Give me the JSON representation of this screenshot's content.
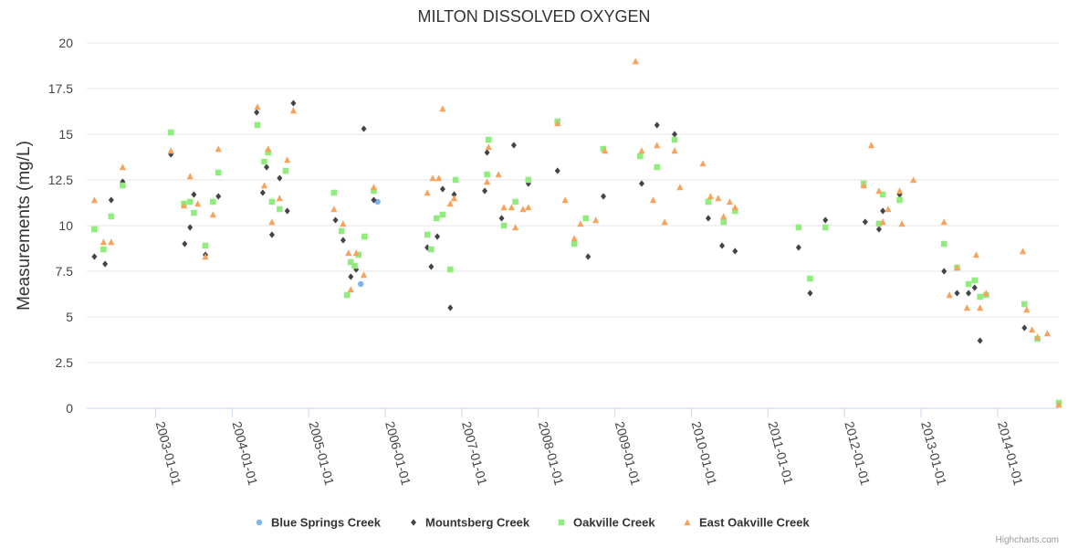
{
  "chart_data": {
    "type": "scatter",
    "title": "MILTON DISSOLVED OXYGEN",
    "ylabel": "Measurements (mg/L)",
    "xlabel": "",
    "ylim": [
      0,
      20
    ],
    "yticks": [
      0,
      2.5,
      5,
      7.5,
      10,
      12.5,
      15,
      17.5,
      20
    ],
    "ytick_labels": [
      "0",
      "2.5",
      "5",
      "7.5",
      "10",
      "12.5",
      "15",
      "17.5",
      "20"
    ],
    "xlim": [
      2002.1,
      2014.8
    ],
    "xticks": [
      2003,
      2004,
      2005,
      2006,
      2007,
      2008,
      2009,
      2010,
      2011,
      2012,
      2013,
      2014
    ],
    "xtick_labels": [
      "2003-01-01",
      "2004-01-01",
      "2005-01-01",
      "2006-01-01",
      "2007-01-01",
      "2008-01-01",
      "2009-01-01",
      "2010-01-01",
      "2011-01-01",
      "2012-01-01",
      "2013-01-01",
      "2014-01-01"
    ],
    "grid": true,
    "legend_position": "bottom-center",
    "credits": "Highcharts.com",
    "series": [
      {
        "name": "Blue Springs Creek",
        "color": "#7cb5ec",
        "marker": "circle",
        "points": [
          [
            2005.68,
            6.8
          ],
          [
            2005.9,
            11.3
          ]
        ]
      },
      {
        "name": "Mountsberg Creek",
        "color": "#434348",
        "marker": "diamond",
        "points": [
          [
            2002.2,
            8.3
          ],
          [
            2002.34,
            7.9
          ],
          [
            2002.42,
            11.4
          ],
          [
            2002.57,
            12.4
          ],
          [
            2003.2,
            13.9
          ],
          [
            2003.38,
            9.0
          ],
          [
            2003.45,
            9.9
          ],
          [
            2003.5,
            11.7
          ],
          [
            2003.65,
            8.4
          ],
          [
            2003.82,
            11.6
          ],
          [
            2004.32,
            16.2
          ],
          [
            2004.4,
            11.8
          ],
          [
            2004.45,
            13.2
          ],
          [
            2004.52,
            9.5
          ],
          [
            2004.62,
            12.6
          ],
          [
            2004.72,
            10.8
          ],
          [
            2004.8,
            16.7
          ],
          [
            2005.35,
            10.3
          ],
          [
            2005.45,
            9.2
          ],
          [
            2005.55,
            7.2
          ],
          [
            2005.62,
            7.6
          ],
          [
            2005.72,
            15.3
          ],
          [
            2005.85,
            11.4
          ],
          [
            2006.55,
            8.8
          ],
          [
            2006.6,
            7.75
          ],
          [
            2006.68,
            9.4
          ],
          [
            2006.75,
            12.0
          ],
          [
            2006.85,
            5.5
          ],
          [
            2006.9,
            11.7
          ],
          [
            2007.3,
            11.9
          ],
          [
            2007.33,
            14.0
          ],
          [
            2007.52,
            10.4
          ],
          [
            2007.68,
            14.4
          ],
          [
            2007.87,
            12.3
          ],
          [
            2008.25,
            13.0
          ],
          [
            2008.65,
            8.3
          ],
          [
            2008.85,
            11.6
          ],
          [
            2009.35,
            12.3
          ],
          [
            2009.55,
            15.5
          ],
          [
            2009.78,
            15.0
          ],
          [
            2010.22,
            10.4
          ],
          [
            2010.4,
            8.9
          ],
          [
            2010.57,
            8.6
          ],
          [
            2011.4,
            8.8
          ],
          [
            2011.55,
            6.3
          ],
          [
            2011.75,
            10.3
          ],
          [
            2012.27,
            10.2
          ],
          [
            2012.45,
            9.8
          ],
          [
            2012.5,
            10.8
          ],
          [
            2012.72,
            11.7
          ],
          [
            2013.3,
            7.5
          ],
          [
            2013.47,
            6.3
          ],
          [
            2013.62,
            6.3
          ],
          [
            2013.7,
            6.6
          ],
          [
            2013.77,
            3.7
          ],
          [
            2014.35,
            4.4
          ]
        ]
      },
      {
        "name": "Oakville Creek",
        "color": "#90ed7d",
        "marker": "square",
        "points": [
          [
            2002.2,
            9.8
          ],
          [
            2002.32,
            8.7
          ],
          [
            2002.42,
            10.5
          ],
          [
            2002.57,
            12.2
          ],
          [
            2003.2,
            15.1
          ],
          [
            2003.37,
            11.2
          ],
          [
            2003.45,
            11.3
          ],
          [
            2003.5,
            10.7
          ],
          [
            2003.65,
            8.9
          ],
          [
            2003.75,
            11.3
          ],
          [
            2003.82,
            12.9
          ],
          [
            2004.33,
            15.5
          ],
          [
            2004.42,
            13.5
          ],
          [
            2004.47,
            14.0
          ],
          [
            2004.52,
            11.3
          ],
          [
            2004.62,
            10.9
          ],
          [
            2004.7,
            13.0
          ],
          [
            2005.33,
            11.8
          ],
          [
            2005.43,
            9.7
          ],
          [
            2005.5,
            6.2
          ],
          [
            2005.55,
            8.0
          ],
          [
            2005.6,
            7.8
          ],
          [
            2005.65,
            8.4
          ],
          [
            2005.73,
            9.4
          ],
          [
            2005.85,
            11.9
          ],
          [
            2006.55,
            9.5
          ],
          [
            2006.6,
            8.7
          ],
          [
            2006.67,
            10.4
          ],
          [
            2006.75,
            10.6
          ],
          [
            2006.85,
            7.6
          ],
          [
            2006.92,
            12.5
          ],
          [
            2007.33,
            12.8
          ],
          [
            2007.35,
            14.7
          ],
          [
            2007.55,
            10.0
          ],
          [
            2007.7,
            11.3
          ],
          [
            2007.87,
            12.5
          ],
          [
            2008.25,
            15.7
          ],
          [
            2008.47,
            9.0
          ],
          [
            2008.62,
            10.4
          ],
          [
            2008.85,
            14.2
          ],
          [
            2009.33,
            13.8
          ],
          [
            2009.55,
            13.2
          ],
          [
            2009.78,
            14.7
          ],
          [
            2010.22,
            11.3
          ],
          [
            2010.42,
            10.2
          ],
          [
            2010.57,
            10.8
          ],
          [
            2011.4,
            9.9
          ],
          [
            2011.55,
            7.1
          ],
          [
            2011.75,
            9.9
          ],
          [
            2012.25,
            12.3
          ],
          [
            2012.45,
            10.1
          ],
          [
            2012.5,
            11.7
          ],
          [
            2012.72,
            11.4
          ],
          [
            2013.3,
            9.0
          ],
          [
            2013.47,
            7.7
          ],
          [
            2013.62,
            6.8
          ],
          [
            2013.7,
            7.0
          ],
          [
            2013.77,
            6.1
          ],
          [
            2013.85,
            6.2
          ],
          [
            2014.35,
            5.7
          ],
          [
            2014.52,
            3.8
          ],
          [
            2014.8,
            0.3
          ]
        ]
      },
      {
        "name": "East Oakville Creek",
        "color": "#f7a35c",
        "marker": "triangle",
        "points": [
          [
            2002.2,
            11.4
          ],
          [
            2002.32,
            9.1
          ],
          [
            2002.42,
            9.1
          ],
          [
            2002.57,
            13.2
          ],
          [
            2003.2,
            14.1
          ],
          [
            2003.37,
            11.1
          ],
          [
            2003.45,
            12.7
          ],
          [
            2003.55,
            11.2
          ],
          [
            2003.65,
            8.3
          ],
          [
            2003.75,
            10.6
          ],
          [
            2003.82,
            14.2
          ],
          [
            2004.33,
            16.5
          ],
          [
            2004.42,
            12.2
          ],
          [
            2004.47,
            14.2
          ],
          [
            2004.52,
            10.2
          ],
          [
            2004.62,
            11.5
          ],
          [
            2004.72,
            13.6
          ],
          [
            2004.8,
            16.3
          ],
          [
            2005.33,
            10.9
          ],
          [
            2005.45,
            10.1
          ],
          [
            2005.52,
            8.5
          ],
          [
            2005.55,
            6.5
          ],
          [
            2005.62,
            8.5
          ],
          [
            2005.72,
            7.3
          ],
          [
            2005.85,
            12.1
          ],
          [
            2006.55,
            11.8
          ],
          [
            2006.62,
            12.6
          ],
          [
            2006.7,
            12.6
          ],
          [
            2006.75,
            16.4
          ],
          [
            2006.85,
            11.2
          ],
          [
            2006.9,
            11.5
          ],
          [
            2007.33,
            12.4
          ],
          [
            2007.35,
            14.3
          ],
          [
            2007.48,
            12.8
          ],
          [
            2007.55,
            11.0
          ],
          [
            2007.65,
            11.0
          ],
          [
            2007.7,
            9.9
          ],
          [
            2007.8,
            10.9
          ],
          [
            2007.87,
            11.0
          ],
          [
            2008.25,
            15.6
          ],
          [
            2008.35,
            11.4
          ],
          [
            2008.47,
            9.3
          ],
          [
            2008.55,
            10.1
          ],
          [
            2008.75,
            10.3
          ],
          [
            2008.87,
            14.1
          ],
          [
            2009.27,
            19.0
          ],
          [
            2009.35,
            14.1
          ],
          [
            2009.5,
            11.4
          ],
          [
            2009.55,
            14.4
          ],
          [
            2009.65,
            10.2
          ],
          [
            2009.78,
            14.1
          ],
          [
            2009.85,
            12.1
          ],
          [
            2010.15,
            13.4
          ],
          [
            2010.25,
            11.6
          ],
          [
            2010.35,
            11.5
          ],
          [
            2010.42,
            10.5
          ],
          [
            2010.5,
            11.3
          ],
          [
            2010.57,
            11.0
          ],
          [
            2012.25,
            12.2
          ],
          [
            2012.35,
            14.4
          ],
          [
            2012.45,
            11.9
          ],
          [
            2012.5,
            10.2
          ],
          [
            2012.57,
            10.9
          ],
          [
            2012.72,
            11.9
          ],
          [
            2012.75,
            10.1
          ],
          [
            2012.9,
            12.5
          ],
          [
            2013.3,
            10.2
          ],
          [
            2013.37,
            6.2
          ],
          [
            2013.47,
            7.7
          ],
          [
            2013.6,
            5.5
          ],
          [
            2013.72,
            8.4
          ],
          [
            2013.77,
            5.5
          ],
          [
            2013.85,
            6.3
          ],
          [
            2014.33,
            8.6
          ],
          [
            2014.38,
            5.4
          ],
          [
            2014.45,
            4.3
          ],
          [
            2014.52,
            3.9
          ],
          [
            2014.65,
            4.1
          ],
          [
            2014.8,
            0.2
          ]
        ]
      }
    ]
  }
}
